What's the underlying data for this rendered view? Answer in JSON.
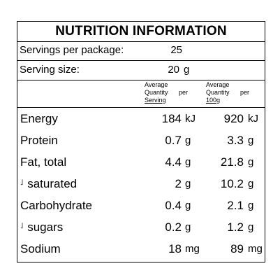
{
  "title": "NUTRITION INFORMATION",
  "servings_per_package": {
    "label": "Servings per package:",
    "value": "25"
  },
  "serving_size": {
    "label": "Serving size:",
    "value": "20",
    "unit": "g"
  },
  "columns": {
    "per_serving": {
      "line1": "Average",
      "line2": "Quantity",
      "per": "per",
      "line3": "Serving"
    },
    "per_100g": {
      "line1": "Average",
      "line2": "Quantity",
      "per": "per",
      "line3": "100g"
    }
  },
  "rows": [
    {
      "name": "Energy",
      "sub": false,
      "serving": "184",
      "serving_unit": "kJ",
      "per100": "920",
      "per100_unit": "kJ"
    },
    {
      "name": "Protein",
      "sub": false,
      "serving": "0.7",
      "serving_unit": "g",
      "per100": "3.3",
      "per100_unit": "g"
    },
    {
      "name": "Fat, total",
      "sub": false,
      "serving": "4.4",
      "serving_unit": "g",
      "per100": "21.8",
      "per100_unit": "g"
    },
    {
      "name": "saturated",
      "sub": true,
      "serving": "2",
      "serving_unit": "g",
      "per100": "10.2",
      "per100_unit": "g"
    },
    {
      "name": "Carbohydrate",
      "sub": false,
      "serving": "0.4",
      "serving_unit": "g",
      "per100": "2.1",
      "per100_unit": "g"
    },
    {
      "name": "sugars",
      "sub": true,
      "serving": "0.2",
      "serving_unit": "g",
      "per100": "1.2",
      "per100_unit": "g"
    },
    {
      "name": "Sodium",
      "sub": false,
      "serving": "18",
      "serving_unit": "mg",
      "per100": "89",
      "per100_unit": "mg"
    }
  ]
}
